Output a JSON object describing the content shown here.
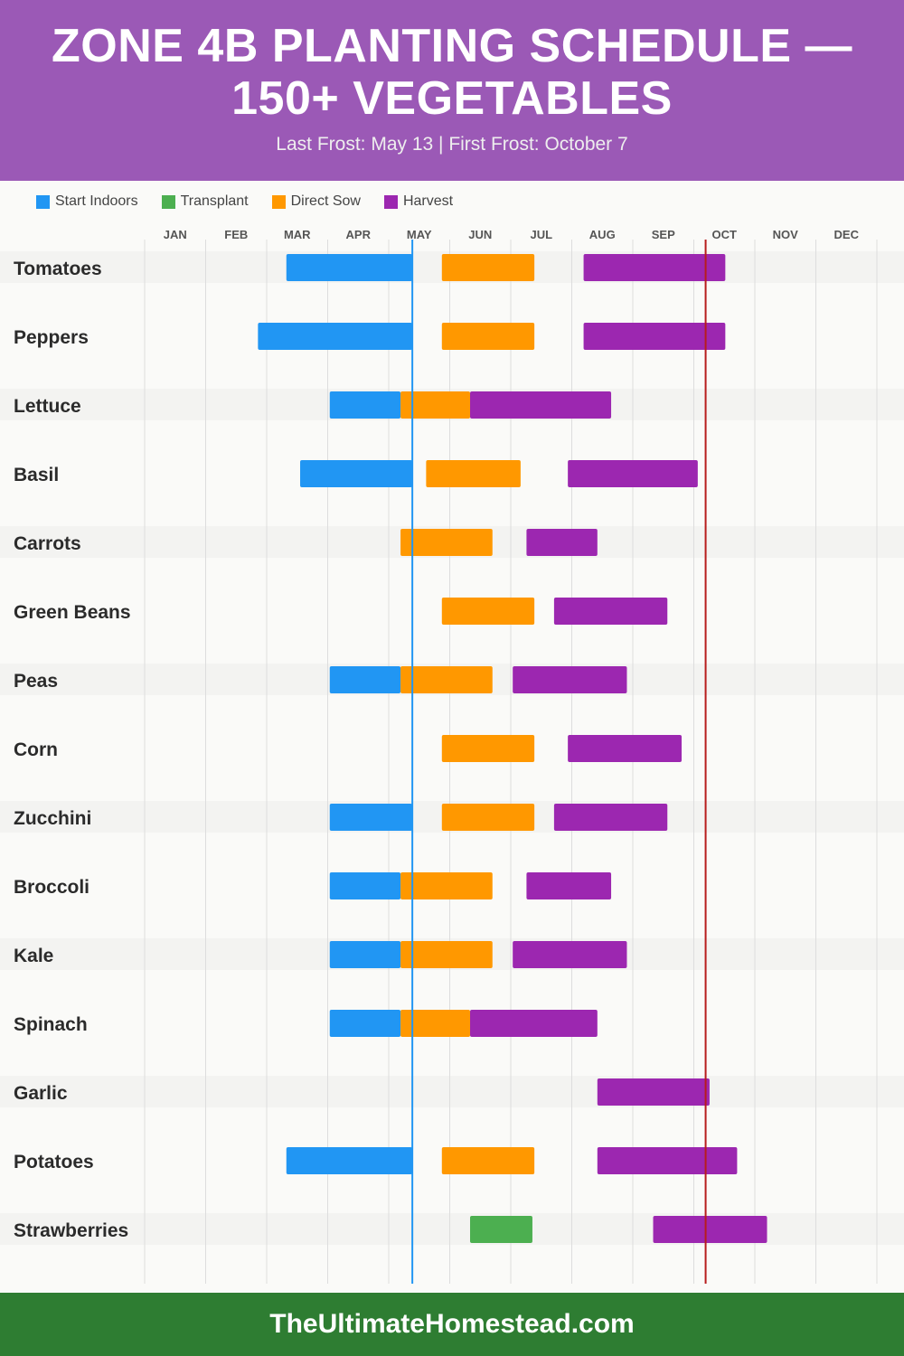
{
  "header": {
    "title": "ZONE 4B PLANTING SCHEDULE — 150+ VEGETABLES",
    "subtitle": "Last Frost: May 13 | First Frost: October 7"
  },
  "footer": {
    "site": "TheUltimateHomestead.com"
  },
  "chart_data": {
    "type": "gantt",
    "months": [
      "JAN",
      "FEB",
      "MAR",
      "APR",
      "MAY",
      "JUN",
      "JUL",
      "AUG",
      "SEP",
      "OCT",
      "NOV",
      "DEC"
    ],
    "legend": [
      {
        "key": "indoors",
        "label": "Start Indoors",
        "color": "#2196f3"
      },
      {
        "key": "transplant",
        "label": "Transplant",
        "color": "#4caf50"
      },
      {
        "key": "sow",
        "label": "Direct Sow",
        "color": "#ff9800"
      },
      {
        "key": "harvest",
        "label": "Harvest",
        "color": "#9c27b0"
      }
    ],
    "frost_lines": [
      {
        "label": "Last Frost",
        "date": "05-13",
        "color": "#2196f3"
      },
      {
        "label": "First Frost",
        "date": "10-07",
        "color": "#b71c1c"
      }
    ],
    "crops": [
      {
        "name": "Tomatoes",
        "phases": [
          {
            "type": "indoors",
            "start": "03-11",
            "end": "05-13"
          },
          {
            "type": "sow",
            "start": "05-28",
            "end": "07-13"
          },
          {
            "type": "harvest",
            "start": "08-07",
            "end": "10-17"
          }
        ]
      },
      {
        "name": "Peppers",
        "phases": [
          {
            "type": "indoors",
            "start": "02-25",
            "end": "05-13"
          },
          {
            "type": "sow",
            "start": "05-28",
            "end": "07-13"
          },
          {
            "type": "harvest",
            "start": "08-07",
            "end": "10-17"
          }
        ]
      },
      {
        "name": "Lettuce",
        "phases": [
          {
            "type": "indoors",
            "start": "04-02",
            "end": "05-07"
          },
          {
            "type": "sow",
            "start": "05-07",
            "end": "06-11"
          },
          {
            "type": "harvest",
            "start": "06-11",
            "end": "08-21"
          }
        ]
      },
      {
        "name": "Basil",
        "phases": [
          {
            "type": "indoors",
            "start": "03-18",
            "end": "05-13"
          },
          {
            "type": "sow",
            "start": "05-20",
            "end": "07-06"
          },
          {
            "type": "harvest",
            "start": "07-30",
            "end": "10-03"
          }
        ]
      },
      {
        "name": "Carrots",
        "phases": [
          {
            "type": "sow",
            "start": "05-07",
            "end": "06-22"
          },
          {
            "type": "harvest",
            "start": "07-09",
            "end": "08-14"
          }
        ]
      },
      {
        "name": "Green Beans",
        "phases": [
          {
            "type": "sow",
            "start": "05-28",
            "end": "07-13"
          },
          {
            "type": "harvest",
            "start": "07-23",
            "end": "09-18"
          }
        ]
      },
      {
        "name": "Peas",
        "phases": [
          {
            "type": "indoors",
            "start": "04-02",
            "end": "05-07"
          },
          {
            "type": "sow",
            "start": "05-07",
            "end": "06-22"
          },
          {
            "type": "harvest",
            "start": "07-02",
            "end": "08-29"
          }
        ]
      },
      {
        "name": "Corn",
        "phases": [
          {
            "type": "sow",
            "start": "05-28",
            "end": "07-13"
          },
          {
            "type": "harvest",
            "start": "07-30",
            "end": "09-25"
          }
        ]
      },
      {
        "name": "Zucchini",
        "phases": [
          {
            "type": "indoors",
            "start": "04-02",
            "end": "05-13"
          },
          {
            "type": "sow",
            "start": "05-28",
            "end": "07-13"
          },
          {
            "type": "harvest",
            "start": "07-23",
            "end": "09-18"
          }
        ]
      },
      {
        "name": "Broccoli",
        "phases": [
          {
            "type": "indoors",
            "start": "04-02",
            "end": "05-07"
          },
          {
            "type": "sow",
            "start": "05-07",
            "end": "06-22"
          },
          {
            "type": "harvest",
            "start": "07-09",
            "end": "08-21"
          }
        ]
      },
      {
        "name": "Kale",
        "phases": [
          {
            "type": "indoors",
            "start": "04-02",
            "end": "05-07"
          },
          {
            "type": "sow",
            "start": "05-07",
            "end": "06-22"
          },
          {
            "type": "harvest",
            "start": "07-02",
            "end": "08-29"
          }
        ]
      },
      {
        "name": "Spinach",
        "phases": [
          {
            "type": "indoors",
            "start": "04-02",
            "end": "05-07"
          },
          {
            "type": "sow",
            "start": "05-07",
            "end": "06-11"
          },
          {
            "type": "harvest",
            "start": "06-11",
            "end": "08-14"
          }
        ]
      },
      {
        "name": "Garlic",
        "phases": [
          {
            "type": "harvest",
            "start": "08-14",
            "end": "10-09"
          }
        ]
      },
      {
        "name": "Potatoes",
        "phases": [
          {
            "type": "indoors",
            "start": "03-11",
            "end": "05-13"
          },
          {
            "type": "sow",
            "start": "05-28",
            "end": "07-13"
          },
          {
            "type": "harvest",
            "start": "08-14",
            "end": "10-23"
          }
        ]
      },
      {
        "name": "Strawberries",
        "phases": [
          {
            "type": "transplant",
            "start": "06-11",
            "end": "07-12"
          },
          {
            "type": "harvest",
            "start": "09-11",
            "end": "11-07"
          }
        ]
      }
    ]
  }
}
